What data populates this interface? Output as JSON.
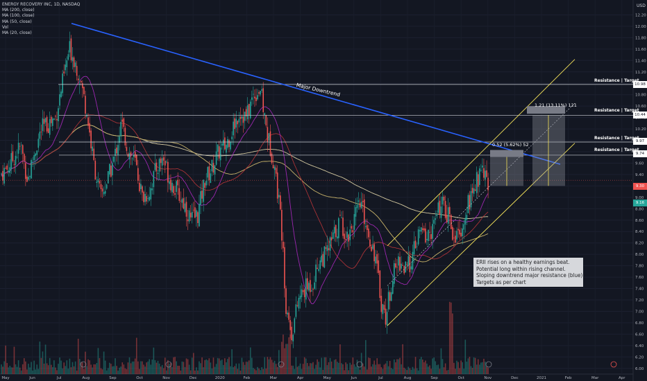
{
  "symbol_header": "ENERGY RECOVERY INC, 1D, NASDAQ",
  "indicators": [
    "MA (200, close)",
    "MA (100, close)",
    "MA (50, close)",
    "Vol",
    "MA (20, close)"
  ],
  "currency": "USD",
  "colors": {
    "background": "#131722",
    "up": "#26a69a",
    "down": "#ef5350",
    "downtrend": "#2962ff",
    "channel": "#f5e35a",
    "ma200": "#d4c9a0",
    "ma100": "#c8b36a",
    "ma50": "#a83236",
    "ma20": "#9c27b0",
    "resistance": "#d1d4dc"
  },
  "annotations": {
    "downtrend_label": "Major Downtrend",
    "resistance_label": "Resistance | Target",
    "measure_1": "0.52 (5.62%) 52",
    "measure_2": "1.21 (13.11%) 121",
    "note_lines": [
      "ERII rises on a healthy earnings beat.",
      "Potential long within rising channel.",
      "Sloping downtrend major resistance (blue)",
      "Targets as per chart"
    ]
  },
  "chart_data": {
    "type": "candlestick",
    "title": "ENERGY RECOVERY INC, 1D, NASDAQ",
    "ylim": [
      5.9,
      12.4
    ],
    "y_ticks": [
      "12.20",
      "12.00",
      "11.80",
      "11.60",
      "11.40",
      "11.20",
      "11.00",
      "10.80",
      "10.60",
      "10.40",
      "10.20",
      "10.00",
      "9.80",
      "9.60",
      "9.40",
      "9.20",
      "9.00",
      "8.80",
      "8.60",
      "8.40",
      "8.20",
      "8.00",
      "7.80",
      "7.60",
      "7.40",
      "7.20",
      "7.00",
      "6.80",
      "6.60",
      "6.40",
      "6.20",
      "6.00"
    ],
    "x_ticks": [
      "May",
      "Jun",
      "Jul",
      "Aug",
      "Sep",
      "Oct",
      "Nov",
      "Dec",
      "2020",
      "Feb",
      "Mar",
      "Apr",
      "May",
      "Jun",
      "Jul",
      "Aug",
      "Sep",
      "Oct",
      "Nov",
      "Dec",
      "2021",
      "Feb",
      "Mar",
      "Apr"
    ],
    "resistance_levels": [
      10.98,
      10.44,
      9.97,
      9.74
    ],
    "resistance_labels": [
      "10.98",
      "10.44",
      "9.97",
      "9.74"
    ],
    "last_price": 9.16,
    "last_price_label": "9.16",
    "high_label_value": "9.30",
    "measure_base": 9.2,
    "downtrend_line": {
      "start": [
        "Jul 2019",
        12.05
      ],
      "end": [
        "Nov 2020",
        9.6
      ]
    },
    "rising_channel": {
      "lower_start": [
        "Jul 2020",
        6.75
      ],
      "lower_end": [
        "Jan 2021",
        9.95
      ],
      "upper_start": [
        "Jul 2020",
        8.15
      ],
      "upper_end": [
        "Jan 2021",
        11.4
      ]
    },
    "price_path": [
      [
        0,
        9.4
      ],
      [
        10,
        9.5
      ],
      [
        20,
        9.7
      ],
      [
        30,
        9.9
      ],
      [
        40,
        9.3
      ],
      [
        50,
        9.8
      ],
      [
        60,
        10.2
      ],
      [
        70,
        10.3
      ],
      [
        80,
        10.4
      ],
      [
        90,
        11.0
      ],
      [
        100,
        11.6
      ],
      [
        105,
        11.5
      ],
      [
        115,
        11.1
      ],
      [
        125,
        10.5
      ],
      [
        135,
        9.6
      ],
      [
        145,
        9.0
      ],
      [
        155,
        9.3
      ],
      [
        165,
        9.7
      ],
      [
        175,
        10.3
      ],
      [
        185,
        9.8
      ],
      [
        195,
        9.6
      ],
      [
        205,
        9.0
      ],
      [
        215,
        9.1
      ],
      [
        225,
        9.5
      ],
      [
        235,
        9.7
      ],
      [
        245,
        9.3
      ],
      [
        255,
        9.1
      ],
      [
        265,
        8.9
      ],
      [
        275,
        8.6
      ],
      [
        285,
        8.7
      ],
      [
        295,
        9.3
      ],
      [
        305,
        9.5
      ],
      [
        315,
        9.8
      ],
      [
        325,
        9.9
      ],
      [
        335,
        10.2
      ],
      [
        345,
        10.5
      ],
      [
        355,
        10.4
      ],
      [
        365,
        10.8
      ],
      [
        375,
        10.9
      ],
      [
        385,
        10.1
      ],
      [
        395,
        9.6
      ],
      [
        405,
        8.6
      ],
      [
        412,
        7.0
      ],
      [
        420,
        6.6
      ],
      [
        430,
        7.2
      ],
      [
        440,
        7.4
      ],
      [
        450,
        7.5
      ],
      [
        460,
        7.9
      ],
      [
        470,
        8.0
      ],
      [
        480,
        8.3
      ],
      [
        490,
        8.6
      ],
      [
        500,
        8.3
      ],
      [
        510,
        8.6
      ],
      [
        520,
        8.9
      ],
      [
        530,
        8.4
      ],
      [
        540,
        8.0
      ],
      [
        550,
        7.1
      ],
      [
        556,
        6.9
      ],
      [
        565,
        7.6
      ],
      [
        575,
        7.9
      ],
      [
        585,
        7.7
      ],
      [
        595,
        8.0
      ],
      [
        605,
        8.4
      ],
      [
        615,
        8.3
      ],
      [
        625,
        8.5
      ],
      [
        635,
        8.9
      ],
      [
        645,
        8.7
      ],
      [
        655,
        8.3
      ],
      [
        665,
        8.5
      ],
      [
        675,
        8.9
      ],
      [
        685,
        9.2
      ],
      [
        695,
        9.6
      ],
      [
        705,
        9.1
      ]
    ]
  }
}
